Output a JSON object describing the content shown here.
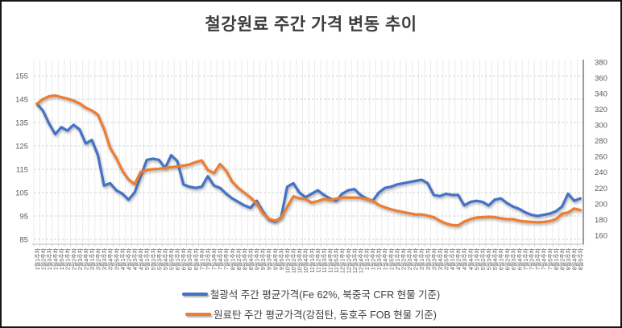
{
  "chart_data": {
    "type": "line",
    "title": "철강원료 주간 가격 변동 추이",
    "legend_position": "bottom",
    "grid": {
      "vertical": "solid",
      "horizontal": "dashed"
    },
    "left_axis": {
      "ticks": [
        155,
        145,
        135,
        125,
        115,
        105,
        95,
        85
      ],
      "min": 85,
      "max": 155
    },
    "right_axis": {
      "ticks": [
        380,
        360,
        340,
        320,
        300,
        280,
        260,
        240,
        220,
        200,
        180,
        160
      ],
      "min": 160,
      "max": 380
    },
    "categories": [
      "1월1주차",
      "1월2주차",
      "1월3주차",
      "1월4주차",
      "1월5주차",
      "2월1주차",
      "2월2주차",
      "2월3주차",
      "2월4주차",
      "3월1주차",
      "3월2주차",
      "3월3주차",
      "3월4주차",
      "3월5주차",
      "4월1주차",
      "4월2주차",
      "4월3주차",
      "4월4주차",
      "5월1주차",
      "5월2주차",
      "5월3주차",
      "5월4주차",
      "5월5주차",
      "6월1주차",
      "6월2주차",
      "6월3주차",
      "6월4주차",
      "7월1주차",
      "7월2주차",
      "7월3주차",
      "7월4주차",
      "7월5주차",
      "8월1주차",
      "8월2주차",
      "8월3주차",
      "8월4주차",
      "9월1주차",
      "9월2주차",
      "9월3주차",
      "9월4주차",
      "9월5주차",
      "10월1주차",
      "10월2주차",
      "10월3주차",
      "10월4주차",
      "11월1주차",
      "11월2주차",
      "11월3주차",
      "11월4주차",
      "11월5주차",
      "12월1주차",
      "12월2주차",
      "12월3주차",
      "12월4주차",
      "1월1주차",
      "1월2주차",
      "1월3주차",
      "1월4주차",
      "1월5주차",
      "2월1주차",
      "2월2주차",
      "2월3주차",
      "2월4주차",
      "3월1주차",
      "3월2주차",
      "3월3주차",
      "3월4주차",
      "3월5주차",
      "4월1주차",
      "4월2주차",
      "4월3주차",
      "4월4주차",
      "5월1주차",
      "5월2주차",
      "5월3주차",
      "5월4주차",
      "6월1주차",
      "6월2주차",
      "6월3주차",
      "6월4주차",
      "7월1주차",
      "7월2주차",
      "7월3주차",
      "7월4주차",
      "7월5주차",
      "8월1주차",
      "8월2주차",
      "8월3주차",
      "8월4주차",
      "8월5주차"
    ],
    "series": [
      {
        "name": "철광석 주간 평균가격(Fe 62%, 북중국 CFR 현물 기준)",
        "axis": "left",
        "color": "#4472C4",
        "values": [
          143,
          140,
          134.5,
          130,
          133,
          131.5,
          134,
          132,
          126,
          127.5,
          121,
          108,
          109,
          106,
          104.5,
          102,
          105,
          112,
          119,
          119.5,
          119,
          115.5,
          121,
          118.5,
          108.5,
          107.5,
          107,
          107.5,
          112,
          108,
          107,
          104.5,
          102.5,
          101,
          99.5,
          98.5,
          101.5,
          97,
          93.5,
          92.5,
          94.5,
          107.5,
          109,
          105,
          103,
          104.5,
          106,
          104,
          102.5,
          101.5,
          104.5,
          106,
          106.5,
          104,
          102.5,
          101.5,
          105,
          107,
          107.5,
          108.5,
          109,
          109.5,
          110,
          110.5,
          109,
          104,
          103.5,
          104.5,
          104,
          104,
          99.5,
          101,
          101.5,
          101,
          99.5,
          102,
          102.5,
          100.5,
          99,
          98,
          96.5,
          95.5,
          95,
          95.5,
          96,
          97,
          99,
          104.5,
          101.5,
          102.5
        ]
      },
      {
        "name": "원료탄 주간 평균가격(강점탄, 동호주 FOB 현물 기준)",
        "axis": "right",
        "color": "#ED7D31",
        "values": [
          327,
          333,
          336.5,
          337.5,
          335.5,
          333.5,
          331,
          327.5,
          322,
          318.5,
          313,
          295,
          271,
          258,
          242,
          231,
          225,
          240.5,
          243,
          244,
          244.5,
          245.5,
          246.5,
          247.5,
          248.5,
          250,
          253,
          255,
          243,
          239,
          250.5,
          242,
          228,
          220,
          214,
          208,
          200,
          188,
          181,
          178.5,
          182,
          196,
          209.5,
          207,
          206,
          201.5,
          203.5,
          206,
          205,
          206.5,
          208,
          208,
          208,
          207.5,
          206,
          204,
          198.5,
          195.5,
          193,
          191,
          189.5,
          188,
          186.5,
          186.5,
          185,
          183,
          178.5,
          175,
          173,
          172.5,
          177.5,
          180.5,
          182.5,
          183,
          183.5,
          183,
          181.5,
          180.5,
          180.5,
          178.5,
          177.5,
          177,
          176.5,
          177,
          178,
          180.5,
          187.5,
          189,
          194,
          192
        ]
      }
    ]
  }
}
